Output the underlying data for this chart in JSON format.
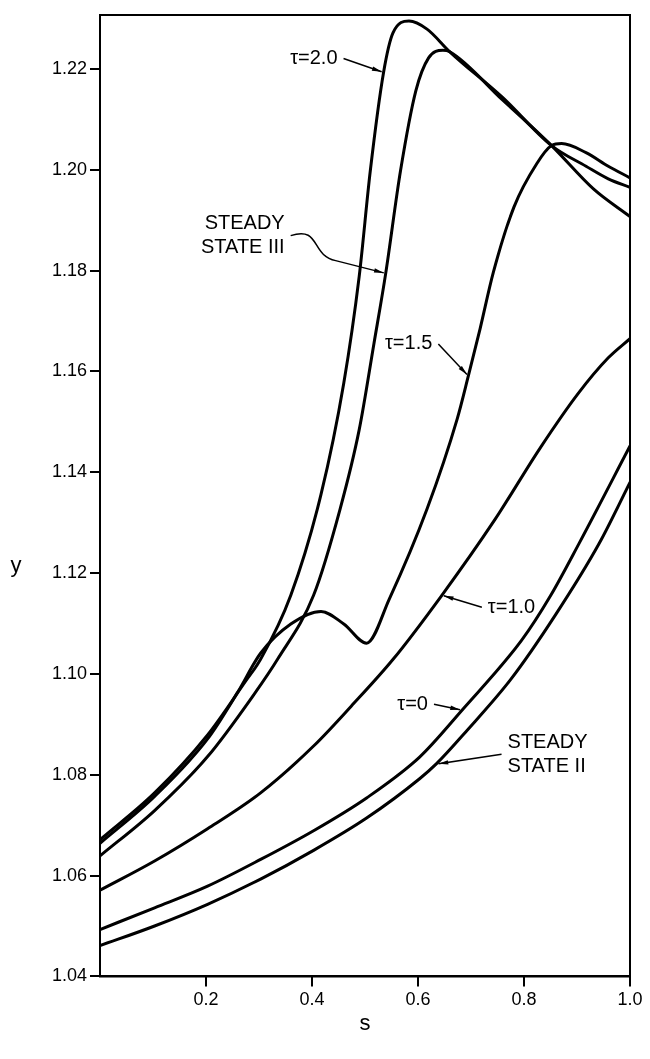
{
  "chart_data": {
    "type": "line",
    "xlabel": "s",
    "ylabel": "y",
    "xlim": [
      0,
      1
    ],
    "ylim": [
      1.04,
      1.2307
    ],
    "xticks": [
      0.2,
      0.4,
      0.6,
      0.8,
      {
        "value": 1,
        "label": "1.0"
      }
    ],
    "yticks": [
      1.04,
      1.06,
      1.08,
      {
        "value": 1.1,
        "label": "1.10"
      },
      1.12,
      1.14,
      1.16,
      1.18,
      {
        "value": 1.2,
        "label": "1.20"
      },
      1.22
    ],
    "grid": false,
    "legend": false,
    "marker": "none",
    "line_style": "solid",
    "series": [
      {
        "color": "#000000",
        "x": [
          0,
          0.103,
          0.203,
          0.303,
          0.403,
          0.503,
          0.603,
          0.635,
          0.69,
          0.775,
          0.86,
          0.942,
          1.0
        ],
        "values": [
          1.0461,
          1.05,
          1.0543,
          1.0593,
          1.065,
          1.0714,
          1.0792,
          1.0822,
          1.0885,
          1.0989,
          1.1118,
          1.1259,
          1.138
        ]
      },
      {
        "color": "#000000",
        "x": [
          0,
          0.103,
          0.203,
          0.303,
          0.403,
          0.503,
          0.603,
          0.683,
          0.795,
          0.85,
          0.904,
          1.0
        ],
        "values": [
          1.0493,
          1.0536,
          1.0579,
          1.0632,
          1.0689,
          1.0754,
          1.0835,
          1.0928,
          1.1066,
          1.1155,
          1.1259,
          1.1452
        ]
      },
      {
        "color": "#000000",
        "x": [
          0,
          0.103,
          0.203,
          0.303,
          0.403,
          0.474,
          0.553,
          0.645,
          0.745,
          0.831,
          0.902,
          0.959,
          1.0
        ],
        "values": [
          1.0571,
          1.0629,
          1.0693,
          1.0764,
          1.0857,
          1.0936,
          1.1029,
          1.1156,
          1.1306,
          1.1449,
          1.1556,
          1.1627,
          1.1665
        ]
      },
      {
        "color": "#000000",
        "x": [
          0,
          0.103,
          0.203,
          0.26,
          0.303,
          0.36,
          0.417,
          0.46,
          0.503,
          0.546,
          0.617,
          0.674,
          0.695,
          0.717,
          0.742,
          0.781,
          0.824,
          0.852,
          0.871,
          0.917,
          0.959,
          1.0
        ],
        "values": [
          1.0664,
          1.0757,
          1.0871,
          1.0964,
          1.1041,
          1.1099,
          1.1124,
          1.1099,
          1.1061,
          1.1149,
          1.1327,
          1.1506,
          1.1591,
          1.1684,
          1.1796,
          1.1926,
          1.2012,
          1.2048,
          1.2052,
          1.2034,
          1.2007,
          1.1984
        ]
      },
      {
        "color": "#000000",
        "x": [
          0,
          0.103,
          0.203,
          0.289,
          0.335,
          0.403,
          0.453,
          0.489,
          0.517,
          0.539,
          0.567,
          0.596,
          0.62,
          0.647,
          0.66,
          0.76,
          0.852,
          0.931,
          1.0
        ],
        "values": [
          1.0639,
          1.0729,
          1.0836,
          1.0957,
          1.1029,
          1.1156,
          1.1327,
          1.1484,
          1.1656,
          1.1794,
          1.1998,
          1.2157,
          1.2222,
          1.2237,
          1.2234,
          1.2138,
          1.2048,
          1.1962,
          1.1907
        ]
      },
      {
        "color": "#000000",
        "x": [
          0,
          0.103,
          0.203,
          0.275,
          0.303,
          0.36,
          0.417,
          0.46,
          0.489,
          0.51,
          0.535,
          0.553,
          0.583,
          0.617,
          0.66,
          0.76,
          0.852,
          0.917,
          0.959,
          1.0
        ],
        "values": [
          1.0671,
          1.0764,
          1.0879,
          1.0986,
          1.1029,
          1.1156,
          1.1356,
          1.1577,
          1.1788,
          1.1998,
          1.2193,
          1.2272,
          1.2295,
          1.2279,
          1.2234,
          1.2143,
          1.2048,
          1.2007,
          1.1982,
          1.1965
        ]
      }
    ],
    "annotations": [
      {
        "text": "τ=2.0",
        "x": 0.535,
        "y": 1.2193
      },
      {
        "text": "STEADY\nSTATE III",
        "x": 0.539,
        "y": 1.1794
      },
      {
        "text": "τ=1.5",
        "x": 0.695,
        "y": 1.1591
      },
      {
        "text": "τ=1.0",
        "x": 0.645,
        "y": 1.1156
      },
      {
        "text": "τ=0",
        "x": 0.683,
        "y": 1.0928
      },
      {
        "text": "STEADY\nSTATE II",
        "x": 0.635,
        "y": 1.0821
      }
    ]
  }
}
